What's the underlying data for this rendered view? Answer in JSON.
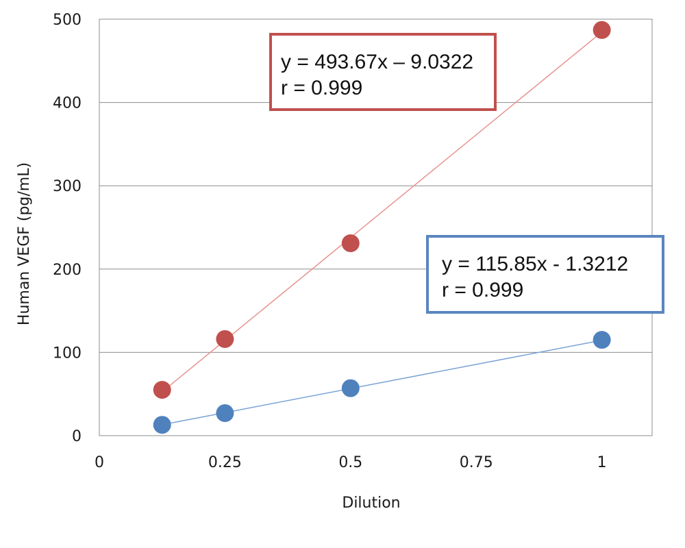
{
  "chart_data": {
    "type": "scatter",
    "xlabel": "Dilution",
    "ylabel": "Human VEGF (pg/mL)",
    "xlim": [
      0,
      1.1
    ],
    "ylim": [
      0,
      500
    ],
    "x_ticks": [
      {
        "value": 0,
        "label": "0"
      },
      {
        "value": 0.25,
        "label": "0.25"
      },
      {
        "value": 0.5,
        "label": "0.5"
      },
      {
        "value": 0.75,
        "label": "0.75"
      },
      {
        "value": 1,
        "label": "1"
      }
    ],
    "y_ticks": [
      {
        "value": 0,
        "label": "0"
      },
      {
        "value": 100,
        "label": "100"
      },
      {
        "value": 200,
        "label": "200"
      },
      {
        "value": 300,
        "label": "300"
      },
      {
        "value": 400,
        "label": "400"
      },
      {
        "value": 500,
        "label": "500"
      }
    ],
    "grid": "horizontal",
    "series": [
      {
        "color": "#c0504d",
        "line_color": "#e8928c",
        "x": [
          0.125,
          0.25,
          0.5,
          1
        ],
        "y": [
          55,
          116,
          231,
          487
        ],
        "fit": {
          "slope": 493.67,
          "intercept": -9.0322
        },
        "annotation": [
          "y = 493.67x – 9.0322",
          "r = 0.999"
        ]
      },
      {
        "color": "#4f81bd",
        "line_color": "#7aa3d6",
        "x": [
          0.125,
          0.25,
          0.5,
          1
        ],
        "y": [
          13,
          27,
          57,
          115
        ],
        "fit": {
          "slope": 115.85,
          "intercept": -1.3212
        },
        "annotation": [
          "y = 115.85x - 1.3212",
          "r = 0.999"
        ]
      }
    ]
  }
}
